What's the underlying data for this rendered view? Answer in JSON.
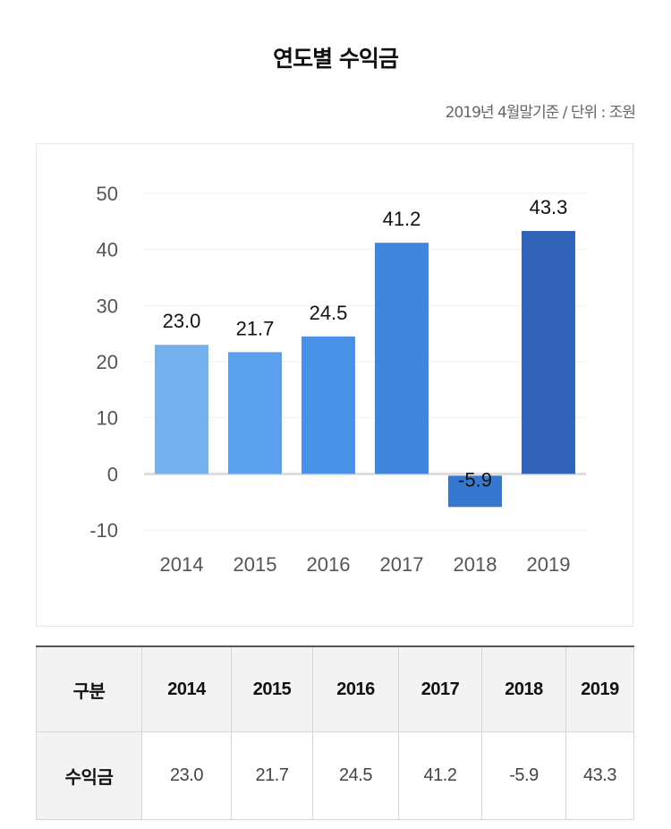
{
  "title": "연도별 수익금",
  "subtitle": "2019년 4월말기준 / 단위 : 조원",
  "colors": {
    "bars": [
      "#74b0f0",
      "#5aa0ec",
      "#4a92e8",
      "#4086de",
      "#3678d0",
      "#3263b8"
    ]
  },
  "chart_data": {
    "type": "bar",
    "categories": [
      "2014",
      "2015",
      "2016",
      "2017",
      "2018",
      "2019"
    ],
    "values": [
      23.0,
      21.7,
      24.5,
      41.2,
      -5.9,
      43.3
    ],
    "value_labels": [
      "23.0",
      "21.7",
      "24.5",
      "41.2",
      "-5.9",
      "43.3"
    ],
    "ylim": [
      -10,
      50
    ],
    "yticks": [
      50,
      40,
      30,
      20,
      10,
      0,
      -10
    ],
    "grid": true
  },
  "table": {
    "header": [
      "구분",
      "2014",
      "2015",
      "2016",
      "2017",
      "2018",
      "2019"
    ],
    "row_label": "수익금",
    "row_values": [
      "23.0",
      "21.7",
      "24.5",
      "41.2",
      "-5.9",
      "43.3"
    ]
  }
}
